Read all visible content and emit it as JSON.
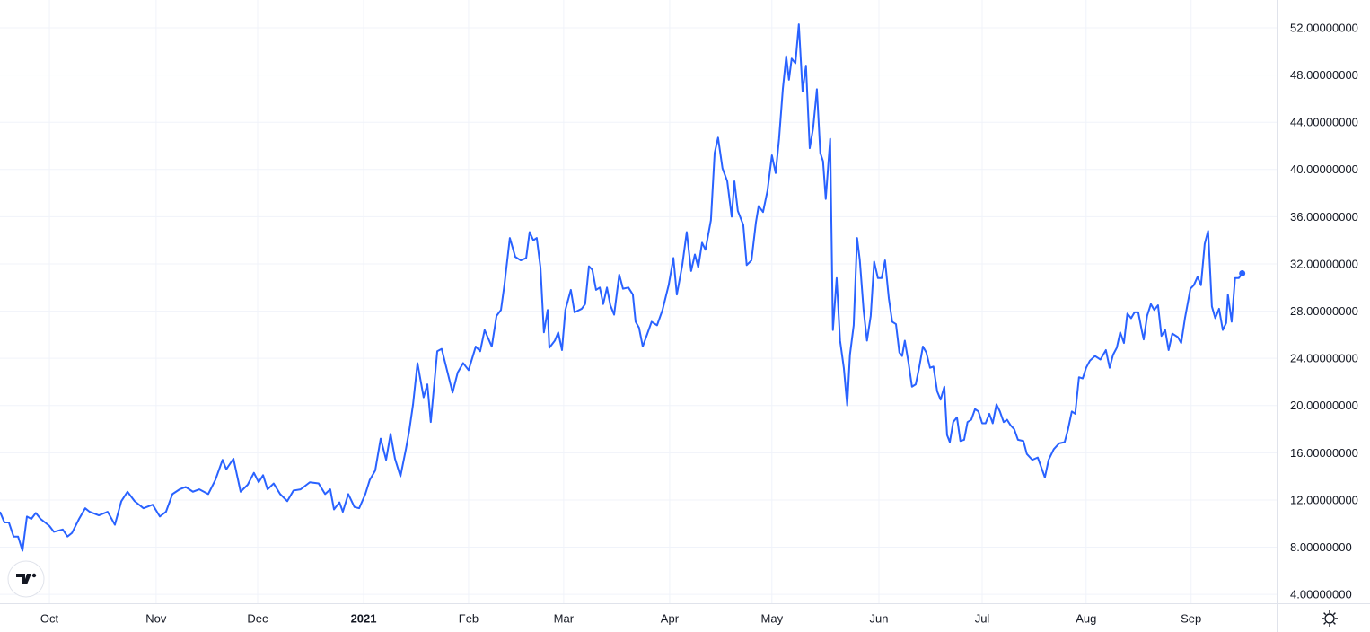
{
  "chart_data": {
    "type": "line",
    "color": "#2962ff",
    "grid": true,
    "x": [
      0,
      1.3,
      2.6,
      4.0,
      5.3,
      6.6,
      7.9,
      9.2,
      10.5,
      11.9,
      14.5,
      15.8,
      18.4,
      19.8,
      21.1,
      23.2,
      25.0,
      26.3,
      29.0,
      31.6,
      33.7,
      35.6,
      37.4,
      39.5,
      42.1,
      44.8,
      46.9,
      48.7,
      50.6,
      52.7,
      54.5,
      56.6,
      58.5,
      61.1,
      63.2,
      65.3,
      66.4,
      68.5,
      70.6,
      72.7,
      74.5,
      75.9,
      77.2,
      78.5,
      80.3,
      82.2,
      84.3,
      86.1,
      88.2,
      90.9,
      93.5,
      95.4,
      96.9,
      98.0,
      99.6,
      100.6,
      102.2,
      104.0,
      105.4,
      107.2,
      108.5,
      110.1,
      111.7,
      113.3,
      114.6,
      115.9,
      117.5,
      119.1,
      120.1,
      121.2,
      122.5,
      124.3,
      125.4,
      126.4,
      128.3,
      129.6,
      130.9,
      132.8,
      134.3,
      135.9,
      137.5,
      139.6,
      140.9,
      142.2,
      144.3,
      145.7,
      147.0,
      148.0,
      149.6,
      151.2,
      152.8,
      154.4,
      155.4,
      156.5,
      157.5,
      158.6,
      159.6,
      160.7,
      161.2,
      162.8,
      163.8,
      164.9,
      165.9,
      167.5,
      168.6,
      170.7,
      171.7,
      172.8,
      173.8,
      174.9,
      176.0,
      177.0,
      178.1,
      179.1,
      180.2,
      181.7,
      182.8,
      184.4,
      185.7,
      186.5,
      187.5,
      188.6,
      189.6,
      191.2,
      192.8,
      194.4,
      196.2,
      197.6,
      198.6,
      200.2,
      201.5,
      202.8,
      203.9,
      204.9,
      206.0,
      207.0,
      208.6,
      209.7,
      210.7,
      212.0,
      213.4,
      214.7,
      215.5,
      216.5,
      218.1,
      219.1,
      220.5,
      221.8,
      222.6,
      223.9,
      225.2,
      226.5,
      227.6,
      228.6,
      229.7,
      230.7,
      231.5,
      232.3,
      233.4,
      234.4,
      235.5,
      236.5,
      237.6,
      238.6,
      239.7,
      240.7,
      241.5,
      242.3,
      243.6,
      244.4,
      245.5,
      246.5,
      247.6,
      248.6,
      249.4,
      250.5,
      251.5,
      252.3,
      253.4,
      254.4,
      255.5,
      256.5,
      257.6,
      258.7,
      259.7,
      260.8,
      261.8,
      262.9,
      263.9,
      264.7,
      265.5,
      266.6,
      267.6,
      268.7,
      269.7,
      270.8,
      271.8,
      272.9,
      273.9,
      275.0,
      276.0,
      277.1,
      277.9,
      278.7,
      279.7,
      280.8,
      281.8,
      282.9,
      283.9,
      285.0,
      286.1,
      287.1,
      288.2,
      289.2,
      290.3,
      291.3,
      292.4,
      293.4,
      294.5,
      295.5,
      296.6,
      297.6,
      298.7,
      300.3,
      301.3,
      302.9,
      304.5,
      305.5,
      306.6,
      307.7,
      309.2,
      310.8,
      312.4,
      313.4,
      314.5,
      315.5,
      316.6,
      317.7,
      318.7,
      319.8,
      321.3,
      322.9,
      324.5,
      325.6,
      326.6,
      327.7,
      328.7,
      329.8,
      330.8,
      331.9,
      332.9,
      334.0,
      335.0,
      335.6,
      336.6,
      337.7,
      338.7,
      339.8,
      340.8,
      341.9,
      342.9,
      344.0,
      345.6,
      346.6,
      347.7,
      349.3,
      350.3,
      351.4,
      352.4,
      353.5,
      354.5,
      355.6,
      356.6,
      357.7,
      358.8,
      359.8,
      360.3,
      361.4,
      362.4,
      363.5,
      364.5
    ],
    "values": [
      11.0,
      10.1,
      10.1,
      8.9,
      8.9,
      7.7,
      10.6,
      10.4,
      10.9,
      10.4,
      9.8,
      9.3,
      9.5,
      8.9,
      9.2,
      10.4,
      11.3,
      11.0,
      10.7,
      11.0,
      9.9,
      11.9,
      12.7,
      11.9,
      11.3,
      11.6,
      10.6,
      11.0,
      12.5,
      12.9,
      13.1,
      12.7,
      12.9,
      12.5,
      13.7,
      15.4,
      14.6,
      15.5,
      12.7,
      13.3,
      14.3,
      13.5,
      14.1,
      12.9,
      13.4,
      12.5,
      11.9,
      12.8,
      12.9,
      13.5,
      13.4,
      12.5,
      12.9,
      11.2,
      11.8,
      11.0,
      12.5,
      11.4,
      11.3,
      12.5,
      13.7,
      14.5,
      17.2,
      15.4,
      17.6,
      15.5,
      14.0,
      16.3,
      17.9,
      20.1,
      23.6,
      20.7,
      21.8,
      18.6,
      24.6,
      24.8,
      23.3,
      21.1,
      22.8,
      23.6,
      23.0,
      25.0,
      24.6,
      26.4,
      25.0,
      27.6,
      28.1,
      30.2,
      34.2,
      32.6,
      32.3,
      32.5,
      34.7,
      34.0,
      34.2,
      31.7,
      26.2,
      28.1,
      24.9,
      25.5,
      26.2,
      24.7,
      28.1,
      29.8,
      27.9,
      28.2,
      28.6,
      31.8,
      31.5,
      29.8,
      30.0,
      28.6,
      30.0,
      28.5,
      27.7,
      31.1,
      29.9,
      30.0,
      29.4,
      27.1,
      26.6,
      25.0,
      25.8,
      27.1,
      26.8,
      28.1,
      30.2,
      32.5,
      29.4,
      31.9,
      34.7,
      31.4,
      32.8,
      31.7,
      33.8,
      33.2,
      35.7,
      41.4,
      42.7,
      40.1,
      39.0,
      36.0,
      39.0,
      36.5,
      35.3,
      31.9,
      32.3,
      35.5,
      36.9,
      36.4,
      38.2,
      41.2,
      39.7,
      42.6,
      46.8,
      49.6,
      47.6,
      49.4,
      49.0,
      52.3,
      46.6,
      48.8,
      41.8,
      43.5,
      46.8,
      41.4,
      40.7,
      37.5,
      42.6,
      26.4,
      30.8,
      25.5,
      23.2,
      20.0,
      24.3,
      26.8,
      34.2,
      32.3,
      28.1,
      25.5,
      27.6,
      32.2,
      30.8,
      30.8,
      32.3,
      29.1,
      27.1,
      26.9,
      24.5,
      24.2,
      25.5,
      23.6,
      21.6,
      21.8,
      23.2,
      25.0,
      24.5,
      23.2,
      23.3,
      21.2,
      20.5,
      21.6,
      17.5,
      16.9,
      18.6,
      19.0,
      17.0,
      17.1,
      18.6,
      18.8,
      19.7,
      19.5,
      18.5,
      18.5,
      19.3,
      18.5,
      20.1,
      19.5,
      18.6,
      18.8,
      18.3,
      18.0,
      17.1,
      17.0,
      15.9,
      15.4,
      15.6,
      14.8,
      13.9,
      15.4,
      16.3,
      16.8,
      16.9,
      18.0,
      19.5,
      19.3,
      22.4,
      22.3,
      23.2,
      23.8,
      24.2,
      23.9,
      24.7,
      23.2,
      24.3,
      24.9,
      26.2,
      25.3,
      27.8,
      27.4,
      27.9,
      27.9,
      26.4,
      25.6,
      27.6,
      28.6,
      28.1,
      28.5,
      25.9,
      26.4,
      24.7,
      26.1,
      25.8,
      25.3,
      27.4,
      29.9,
      30.2,
      30.9,
      30.2,
      33.7,
      34.8,
      28.4,
      27.4,
      28.2,
      26.4,
      27.0,
      29.4,
      27.1,
      30.8,
      30.8,
      31.2
    ],
    "xlim": [
      0,
      374.6
    ],
    "xticks": [
      {
        "value": 14.5,
        "label": "Oct"
      },
      {
        "value": 45.8,
        "label": "Nov"
      },
      {
        "value": 75.6,
        "label": "Dec"
      },
      {
        "value": 106.7,
        "label": "2021"
      },
      {
        "value": 137.5,
        "label": "Feb"
      },
      {
        "value": 165.4,
        "label": "Mar"
      },
      {
        "value": 196.5,
        "label": "Apr"
      },
      {
        "value": 226.5,
        "label": "May"
      },
      {
        "value": 257.9,
        "label": "Jun"
      },
      {
        "value": 288.2,
        "label": "Jul"
      },
      {
        "value": 318.7,
        "label": "Aug"
      },
      {
        "value": 349.5,
        "label": "Sep"
      }
    ],
    "ylim": [
      3.25,
      54.36
    ],
    "yticks": [
      {
        "value": 4,
        "label": "4.00000000"
      },
      {
        "value": 8,
        "label": "8.00000000"
      },
      {
        "value": 12,
        "label": "12.00000000"
      },
      {
        "value": 16,
        "label": "16.00000000"
      },
      {
        "value": 20,
        "label": "20.00000000"
      },
      {
        "value": 24,
        "label": "24.00000000"
      },
      {
        "value": 28,
        "label": "28.00000000"
      },
      {
        "value": 32,
        "label": "32.00000000"
      },
      {
        "value": 36,
        "label": "36.00000000"
      },
      {
        "value": 40,
        "label": "40.00000000"
      },
      {
        "value": 44,
        "label": "44.00000000"
      },
      {
        "value": 48,
        "label": "48.00000000"
      },
      {
        "value": 52,
        "label": "52.00000000"
      }
    ]
  }
}
